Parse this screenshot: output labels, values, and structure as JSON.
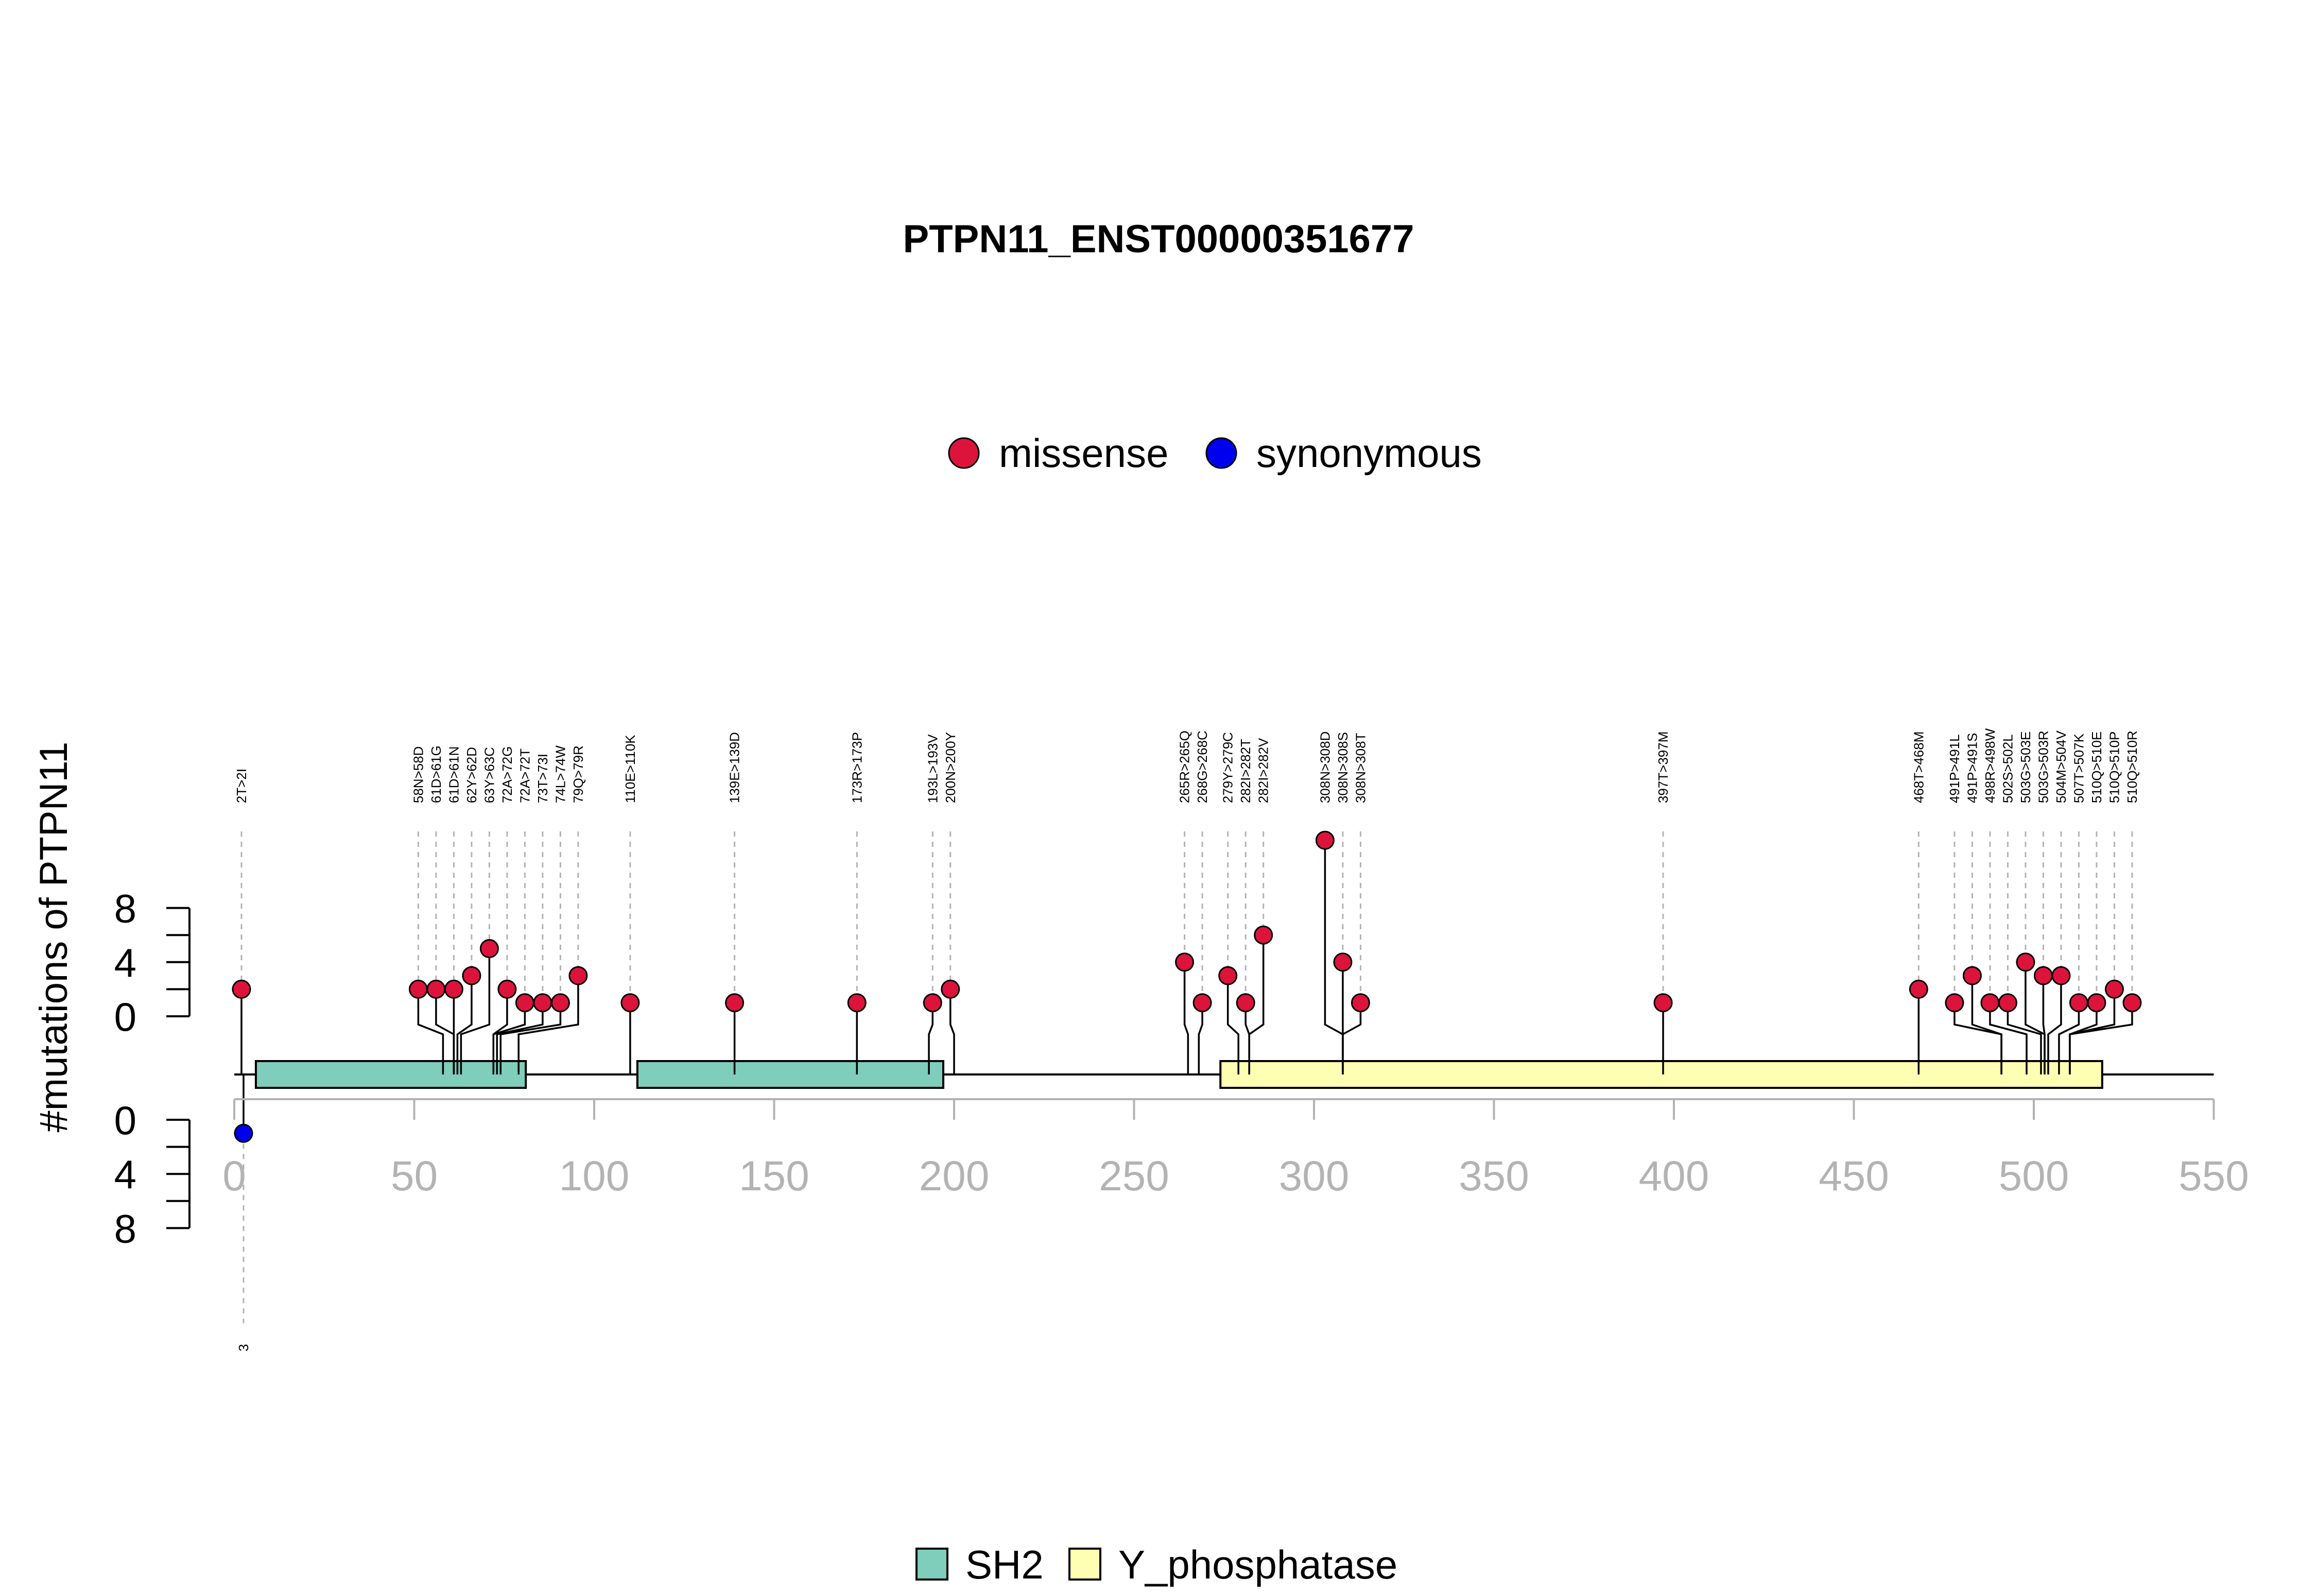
{
  "chart_data": {
    "type": "lollipop",
    "title": "PTPN11_ENST00000351677",
    "ylabel": "#mutations of PTPN11",
    "xlim": [
      0,
      550
    ],
    "x_ticks": [
      "0",
      "50",
      "100",
      "150",
      "200",
      "250",
      "300",
      "350",
      "400",
      "450",
      "500",
      "550"
    ],
    "y_ticks_top": [
      "0",
      "4",
      "8"
    ],
    "y_ticks_bottom": [
      "0",
      "4",
      "8"
    ],
    "mutation_legend": [
      {
        "name": "missense",
        "color": "#DC143C"
      },
      {
        "name": "synonymous",
        "color": "#0000EE"
      }
    ],
    "domain_legend": [
      {
        "name": "SH2",
        "color": "#7FCDBB"
      },
      {
        "name": "Y_phosphatase",
        "color": "#FFFFB3"
      }
    ],
    "domains": [
      {
        "name": "SH2",
        "start": 6,
        "end": 81
      },
      {
        "name": "SH2",
        "start": 112,
        "end": 197
      },
      {
        "name": "Y_phosphatase",
        "start": 274,
        "end": 519
      }
    ],
    "mutations_top": [
      {
        "label": "2T>2I",
        "pos": 2,
        "count": 2,
        "type": "missense"
      },
      {
        "label": "58N>58D",
        "pos": 58,
        "count": 2,
        "type": "missense"
      },
      {
        "label": "61D>61G",
        "pos": 61,
        "count": 2,
        "type": "missense"
      },
      {
        "label": "61D>61N",
        "pos": 61,
        "count": 2,
        "type": "missense"
      },
      {
        "label": "62Y>62D",
        "pos": 62,
        "count": 3,
        "type": "missense"
      },
      {
        "label": "63Y>63C",
        "pos": 63,
        "count": 5,
        "type": "missense"
      },
      {
        "label": "72A>72G",
        "pos": 72,
        "count": 2,
        "type": "missense"
      },
      {
        "label": "72A>72T",
        "pos": 72,
        "count": 1,
        "type": "missense"
      },
      {
        "label": "73T>73I",
        "pos": 73,
        "count": 1,
        "type": "missense"
      },
      {
        "label": "74L>74W",
        "pos": 74,
        "count": 1,
        "type": "missense"
      },
      {
        "label": "79Q>79R",
        "pos": 79,
        "count": 3,
        "type": "missense"
      },
      {
        "label": "110E>110K",
        "pos": 110,
        "count": 1,
        "type": "missense"
      },
      {
        "label": "139E>139D",
        "pos": 139,
        "count": 1,
        "type": "missense"
      },
      {
        "label": "173R>173P",
        "pos": 173,
        "count": 1,
        "type": "missense"
      },
      {
        "label": "193L>193V",
        "pos": 193,
        "count": 1,
        "type": "missense"
      },
      {
        "label": "200N>200Y",
        "pos": 200,
        "count": 2,
        "type": "missense"
      },
      {
        "label": "265R>265Q",
        "pos": 265,
        "count": 4,
        "type": "missense"
      },
      {
        "label": "268G>268C",
        "pos": 268,
        "count": 1,
        "type": "missense"
      },
      {
        "label": "279Y>279C",
        "pos": 279,
        "count": 3,
        "type": "missense"
      },
      {
        "label": "282I>282T",
        "pos": 282,
        "count": 1,
        "type": "missense"
      },
      {
        "label": "282I>282V",
        "pos": 282,
        "count": 6,
        "type": "missense"
      },
      {
        "label": "308N>308D",
        "pos": 308,
        "count": 13,
        "type": "missense"
      },
      {
        "label": "308N>308S",
        "pos": 308,
        "count": 4,
        "type": "missense"
      },
      {
        "label": "308N>308T",
        "pos": 308,
        "count": 1,
        "type": "missense"
      },
      {
        "label": "397T>397M",
        "pos": 397,
        "count": 1,
        "type": "missense"
      },
      {
        "label": "468T>468M",
        "pos": 468,
        "count": 2,
        "type": "missense"
      },
      {
        "label": "491P>491L",
        "pos": 491,
        "count": 1,
        "type": "missense"
      },
      {
        "label": "491P>491S",
        "pos": 491,
        "count": 3,
        "type": "missense"
      },
      {
        "label": "498R>498W",
        "pos": 498,
        "count": 1,
        "type": "missense"
      },
      {
        "label": "502S>502L",
        "pos": 502,
        "count": 1,
        "type": "missense"
      },
      {
        "label": "503G>503E",
        "pos": 503,
        "count": 4,
        "type": "missense"
      },
      {
        "label": "503G>503R",
        "pos": 503,
        "count": 3,
        "type": "missense"
      },
      {
        "label": "504M>504V",
        "pos": 504,
        "count": 3,
        "type": "missense"
      },
      {
        "label": "507T>507K",
        "pos": 507,
        "count": 1,
        "type": "missense"
      },
      {
        "label": "510Q>510E",
        "pos": 510,
        "count": 1,
        "type": "missense"
      },
      {
        "label": "510Q>510P",
        "pos": 510,
        "count": 2,
        "type": "missense"
      },
      {
        "label": "510Q>510R",
        "pos": 510,
        "count": 1,
        "type": "missense"
      }
    ],
    "mutations_bottom": [
      {
        "label": "3",
        "pos": 3,
        "count": 1,
        "type": "synonymous"
      }
    ]
  }
}
